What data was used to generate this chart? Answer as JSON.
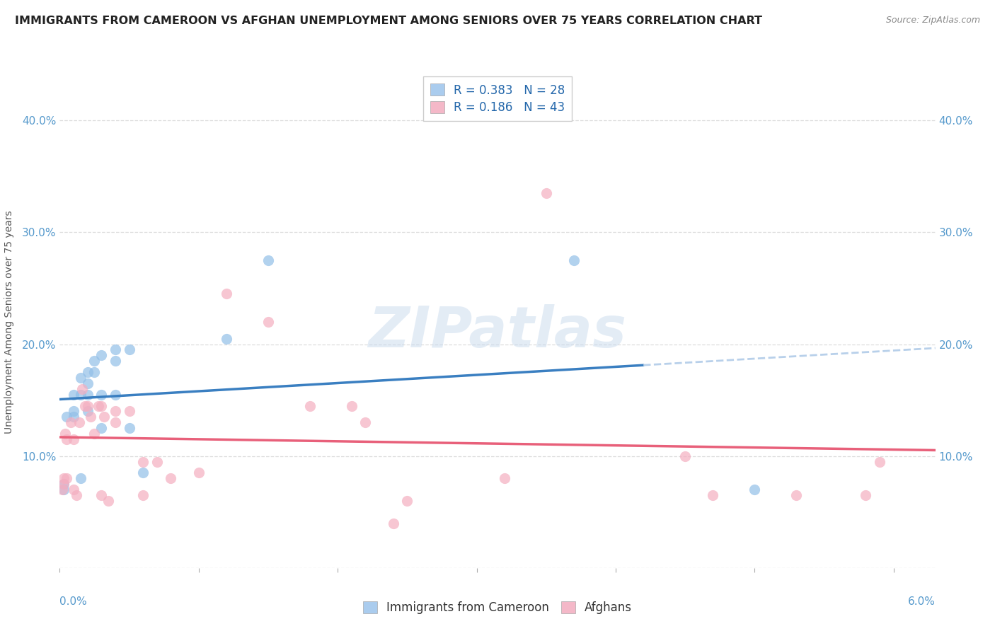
{
  "title": "IMMIGRANTS FROM CAMEROON VS AFGHAN UNEMPLOYMENT AMONG SENIORS OVER 75 YEARS CORRELATION CHART",
  "source": "Source: ZipAtlas.com",
  "ylabel": "Unemployment Among Seniors over 75 years",
  "watermark": "ZIPatlas",
  "legend_r_labels": [
    "R = 0.383   N = 28",
    "R = 0.186   N = 43"
  ],
  "legend_labels_bottom": [
    "Immigrants from Cameroon",
    "Afghans"
  ],
  "blue_scatter_color": "#92bfe8",
  "pink_scatter_color": "#f4aec0",
  "blue_line_color": "#3a7fc1",
  "pink_line_color": "#e8607a",
  "blue_dashed_color": "#b8d0ea",
  "blue_patch_color": "#aaccee",
  "pink_patch_color": "#f4b8c8",
  "blue_scatter": [
    [
      0.0003,
      0.07
    ],
    [
      0.0003,
      0.075
    ],
    [
      0.0005,
      0.135
    ],
    [
      0.001,
      0.155
    ],
    [
      0.001,
      0.14
    ],
    [
      0.001,
      0.135
    ],
    [
      0.0015,
      0.17
    ],
    [
      0.0015,
      0.155
    ],
    [
      0.0015,
      0.08
    ],
    [
      0.002,
      0.175
    ],
    [
      0.002,
      0.165
    ],
    [
      0.002,
      0.155
    ],
    [
      0.002,
      0.14
    ],
    [
      0.0025,
      0.185
    ],
    [
      0.0025,
      0.175
    ],
    [
      0.003,
      0.19
    ],
    [
      0.003,
      0.155
    ],
    [
      0.003,
      0.125
    ],
    [
      0.004,
      0.185
    ],
    [
      0.004,
      0.195
    ],
    [
      0.004,
      0.155
    ],
    [
      0.005,
      0.195
    ],
    [
      0.005,
      0.125
    ],
    [
      0.006,
      0.085
    ],
    [
      0.012,
      0.205
    ],
    [
      0.015,
      0.275
    ],
    [
      0.037,
      0.275
    ],
    [
      0.05,
      0.07
    ]
  ],
  "pink_scatter": [
    [
      0.0002,
      0.07
    ],
    [
      0.0003,
      0.075
    ],
    [
      0.0003,
      0.08
    ],
    [
      0.0004,
      0.12
    ],
    [
      0.0005,
      0.115
    ],
    [
      0.0005,
      0.08
    ],
    [
      0.0008,
      0.13
    ],
    [
      0.001,
      0.115
    ],
    [
      0.001,
      0.07
    ],
    [
      0.0012,
      0.065
    ],
    [
      0.0014,
      0.13
    ],
    [
      0.0016,
      0.16
    ],
    [
      0.0018,
      0.145
    ],
    [
      0.002,
      0.145
    ],
    [
      0.0022,
      0.135
    ],
    [
      0.0025,
      0.12
    ],
    [
      0.0028,
      0.145
    ],
    [
      0.003,
      0.145
    ],
    [
      0.003,
      0.065
    ],
    [
      0.0032,
      0.135
    ],
    [
      0.0035,
      0.06
    ],
    [
      0.004,
      0.14
    ],
    [
      0.004,
      0.13
    ],
    [
      0.005,
      0.14
    ],
    [
      0.006,
      0.095
    ],
    [
      0.006,
      0.065
    ],
    [
      0.007,
      0.095
    ],
    [
      0.008,
      0.08
    ],
    [
      0.01,
      0.085
    ],
    [
      0.012,
      0.245
    ],
    [
      0.015,
      0.22
    ],
    [
      0.018,
      0.145
    ],
    [
      0.021,
      0.145
    ],
    [
      0.022,
      0.13
    ],
    [
      0.024,
      0.04
    ],
    [
      0.025,
      0.06
    ],
    [
      0.032,
      0.08
    ],
    [
      0.035,
      0.335
    ],
    [
      0.045,
      0.1
    ],
    [
      0.047,
      0.065
    ],
    [
      0.053,
      0.065
    ],
    [
      0.058,
      0.065
    ],
    [
      0.059,
      0.095
    ]
  ],
  "xlim": [
    0.0,
    0.063
  ],
  "ylim": [
    0.0,
    0.44
  ],
  "yticks": [
    0.0,
    0.1,
    0.2,
    0.3,
    0.4
  ],
  "ytick_labels": [
    "",
    "10.0%",
    "20.0%",
    "30.0%",
    "40.0%"
  ],
  "xtick_bottom_left": "0.0%",
  "xtick_bottom_right": "6.0%",
  "grid_color": "#dddddd",
  "bg_color": "#ffffff",
  "scatter_size": 120
}
